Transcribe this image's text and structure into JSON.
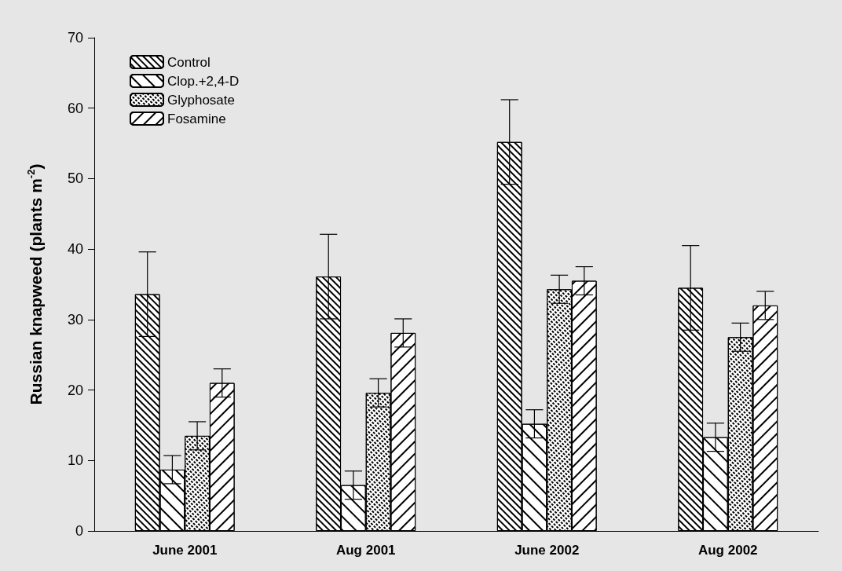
{
  "chart_data": {
    "type": "bar",
    "ylabel": "Russian knapweed (plants m$^{-2}$)",
    "categories": [
      "June 2001",
      "Aug 2001",
      "June 2002",
      "Aug 2002"
    ],
    "series": [
      {
        "name": "Control",
        "color": "#ffffff",
        "values": [
          33.6,
          36.1,
          55.2,
          34.5
        ],
        "errors": [
          6,
          6,
          6,
          6
        ]
      },
      {
        "name": "Clop.+2,4-D",
        "color": "#ffffff",
        "values": [
          8.7,
          6.5,
          15.2,
          13.3
        ],
        "errors": [
          2,
          2,
          2,
          2
        ]
      },
      {
        "name": "Glyphosate",
        "color": "#ffffff",
        "values": [
          13.5,
          19.6,
          34.3,
          27.5
        ],
        "errors": [
          2,
          2,
          2,
          2
        ]
      },
      {
        "name": "Fosamine",
        "color": "#ffffff",
        "values": [
          21,
          28.1,
          35.5,
          32
        ],
        "errors": [
          2,
          2,
          2,
          2
        ]
      }
    ],
    "ylim": [
      0,
      70
    ],
    "yticks": [
      0,
      10,
      20,
      30,
      40,
      50,
      60,
      70
    ],
    "grid": false,
    "legend": "top left"
  }
}
